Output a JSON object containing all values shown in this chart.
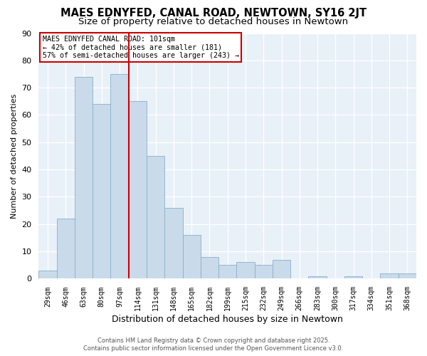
{
  "title": "MAES EDNYFED, CANAL ROAD, NEWTOWN, SY16 2JT",
  "subtitle": "Size of property relative to detached houses in Newtown",
  "xlabel": "Distribution of detached houses by size in Newtown",
  "ylabel": "Number of detached properties",
  "bar_labels": [
    "29sqm",
    "46sqm",
    "63sqm",
    "80sqm",
    "97sqm",
    "114sqm",
    "131sqm",
    "148sqm",
    "165sqm",
    "182sqm",
    "199sqm",
    "215sqm",
    "232sqm",
    "249sqm",
    "266sqm",
    "283sqm",
    "300sqm",
    "317sqm",
    "334sqm",
    "351sqm",
    "368sqm"
  ],
  "bar_values": [
    3,
    22,
    74,
    64,
    75,
    65,
    45,
    26,
    16,
    8,
    5,
    6,
    5,
    7,
    0,
    1,
    0,
    1,
    0,
    2,
    2
  ],
  "bar_color": "#c9daea",
  "bar_edge_color": "#8ab0cc",
  "ylim": [
    0,
    90
  ],
  "yticks": [
    0,
    10,
    20,
    30,
    40,
    50,
    60,
    70,
    80,
    90
  ],
  "vline_x": 4.5,
  "vline_color": "#cc0000",
  "annotation_title": "MAES EDNYFED CANAL ROAD: 101sqm",
  "annotation_line2": "← 42% of detached houses are smaller (181)",
  "annotation_line3": "57% of semi-detached houses are larger (243) →",
  "annotation_box_color": "#cc0000",
  "footer_line1": "Contains HM Land Registry data © Crown copyright and database right 2025.",
  "footer_line2": "Contains public sector information licensed under the Open Government Licence v3.0.",
  "background_color": "#ffffff",
  "plot_background_color": "#e8f0f8",
  "grid_color": "#ffffff",
  "title_fontsize": 10.5,
  "subtitle_fontsize": 9.5
}
